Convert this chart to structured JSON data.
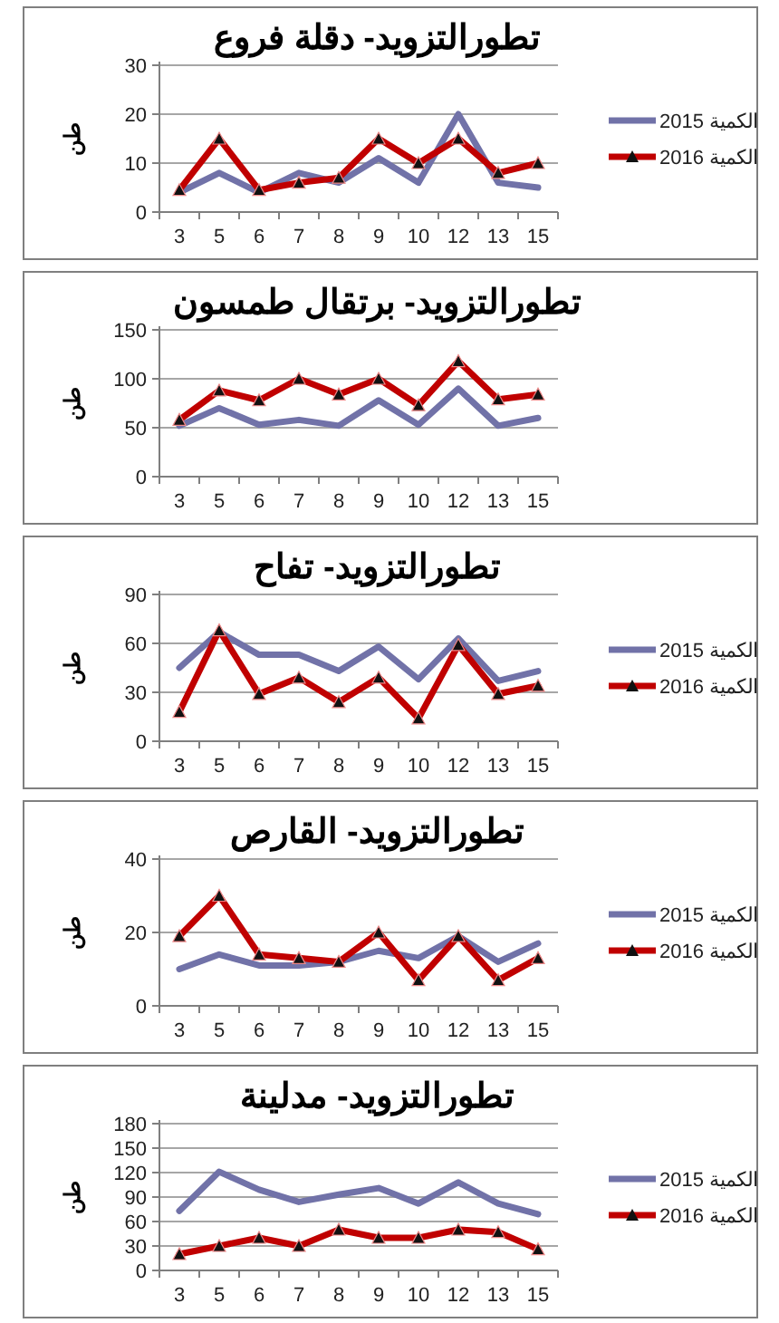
{
  "chart_data": [
    {
      "type": "line",
      "title": "تطورالتزويد- دقلة فروع",
      "ylabel": "طن",
      "categories": [
        "3",
        "5",
        "6",
        "7",
        "8",
        "9",
        "10",
        "12",
        "13",
        "15"
      ],
      "ylim": [
        0,
        30
      ],
      "yticks": [
        0,
        10,
        20,
        30
      ],
      "grid": "y",
      "legend": "right",
      "series": [
        {
          "name": "الكمية 2015",
          "color": "#7172a8",
          "marker": "none",
          "values": [
            4,
            8,
            4,
            8,
            6,
            11,
            6,
            20,
            6,
            5
          ]
        },
        {
          "name": "الكمية 2016",
          "color": "#c00000",
          "marker": "triangle",
          "values": [
            4.5,
            15,
            4.5,
            6,
            7,
            15,
            10,
            15,
            8,
            10
          ]
        }
      ]
    },
    {
      "type": "line",
      "title": "تطورالتزويد- برتقال طمسون",
      "ylabel": "طن",
      "categories": [
        "3",
        "5",
        "6",
        "7",
        "8",
        "9",
        "10",
        "12",
        "13",
        "15"
      ],
      "ylim": [
        0,
        150
      ],
      "yticks": [
        0,
        50,
        100,
        150
      ],
      "grid": "y",
      "series": [
        {
          "color": "#7172a8",
          "marker": "none",
          "values": [
            52,
            70,
            53,
            58,
            52,
            78,
            53,
            90,
            52,
            60
          ]
        },
        {
          "color": "#c00000",
          "marker": "triangle",
          "values": [
            58,
            88,
            78,
            100,
            84,
            100,
            73,
            118,
            79,
            84
          ]
        }
      ]
    },
    {
      "type": "line",
      "title": "تطورالتزويد- تفاح",
      "ylabel": "طن",
      "categories": [
        "3",
        "5",
        "6",
        "7",
        "8",
        "9",
        "10",
        "12",
        "13",
        "15"
      ],
      "ylim": [
        0,
        90
      ],
      "yticks": [
        0,
        30,
        60,
        90
      ],
      "grid": "y",
      "legend": "right",
      "series": [
        {
          "name": "الكمية 2015",
          "color": "#7172a8",
          "marker": "none",
          "values": [
            45,
            67,
            53,
            53,
            43,
            58,
            38,
            63,
            37,
            43
          ]
        },
        {
          "name": "الكمية 2016",
          "color": "#c00000",
          "marker": "triangle",
          "values": [
            18,
            68,
            29,
            39,
            24,
            39,
            14,
            59,
            29,
            34
          ]
        }
      ]
    },
    {
      "type": "line",
      "title": "تطورالتزويد- القارص",
      "ylabel": "طن",
      "categories": [
        "3",
        "5",
        "6",
        "7",
        "8",
        "9",
        "10",
        "12",
        "13",
        "15"
      ],
      "ylim": [
        0,
        40
      ],
      "yticks": [
        0,
        20,
        40
      ],
      "grid": "y",
      "legend": "right",
      "series": [
        {
          "name": "الكمية 2015",
          "color": "#7172a8",
          "marker": "none",
          "values": [
            10,
            14,
            11,
            11,
            12,
            15,
            13,
            19,
            12,
            17
          ]
        },
        {
          "name": "الكمية 2016",
          "color": "#c00000",
          "marker": "triangle",
          "values": [
            19,
            30,
            14,
            13,
            12,
            20,
            7,
            19,
            7,
            13
          ]
        }
      ]
    },
    {
      "type": "line",
      "title": "تطورالتزويد- مدلينة",
      "ylabel": "طن",
      "categories": [
        "3",
        "5",
        "6",
        "7",
        "8",
        "9",
        "10",
        "12",
        "13",
        "15"
      ],
      "ylim": [
        0,
        180
      ],
      "yticks": [
        0,
        30,
        60,
        90,
        120,
        150,
        180
      ],
      "grid": "y",
      "legend": "right",
      "series": [
        {
          "name": "الكمية 2015",
          "color": "#7172a8",
          "marker": "none",
          "values": [
            73,
            121,
            99,
            84,
            93,
            101,
            82,
            108,
            82,
            69
          ]
        },
        {
          "name": "الكمية 2016",
          "color": "#c00000",
          "marker": "triangle",
          "values": [
            20,
            30,
            40,
            30,
            50,
            40,
            40,
            50,
            47,
            26
          ]
        }
      ]
    }
  ]
}
